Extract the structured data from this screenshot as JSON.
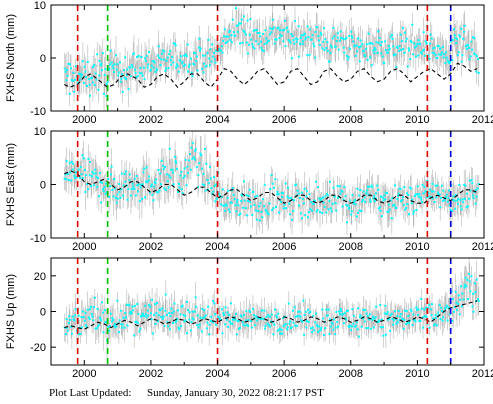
{
  "footer": {
    "label": "Plot Last Updated:",
    "timestamp": "Sunday, January 30, 2022 08:21:17 PST"
  },
  "colors": {
    "error_bars": "#b4b4b4",
    "observations": "#00ffff",
    "model": "#000000",
    "event_red": "#e00000",
    "event_green": "#00c000",
    "event_blue": "#0000e0"
  },
  "chart_data": [
    {
      "type": "scatter",
      "title": "",
      "ylabel": "FXHS North (mm)",
      "xlim": [
        1999.0,
        2012.0
      ],
      "ylim": [
        -10,
        10
      ],
      "xticks": [
        2000,
        2002,
        2004,
        2006,
        2008,
        2010,
        2012
      ],
      "yticks": [
        -10,
        0,
        10
      ],
      "grid": false,
      "event_lines": [
        {
          "x": 1999.8,
          "color": "red"
        },
        {
          "x": 2000.7,
          "color": "green"
        },
        {
          "x": 2004.0,
          "color": "red"
        },
        {
          "x": 2010.3,
          "color": "red"
        },
        {
          "x": 2011.0,
          "color": "blue"
        }
      ],
      "obs_envelope": {
        "x": [
          1999.4,
          1999.8,
          2000.2,
          2000.7,
          2001.0,
          2001.5,
          2002.0,
          2002.5,
          2003.0,
          2003.5,
          2004.0,
          2004.3,
          2004.6,
          2005.0,
          2005.3,
          2005.6,
          2006.0,
          2006.3,
          2006.6,
          2007.0,
          2007.3,
          2007.6,
          2008.0,
          2008.3,
          2008.6,
          2009.0,
          2009.3,
          2009.6,
          2010.0,
          2010.3,
          2010.6,
          2011.0,
          2011.3,
          2011.6,
          2011.85
        ],
        "center": [
          -3.5,
          -4.0,
          -3.0,
          -3.0,
          -2.5,
          -2.0,
          -1.0,
          -0.5,
          0.0,
          0.3,
          0.5,
          4.0,
          5.5,
          4.5,
          3.5,
          5.0,
          4.5,
          3.0,
          4.0,
          3.5,
          2.5,
          3.0,
          2.5,
          1.5,
          2.5,
          2.0,
          1.5,
          2.5,
          2.0,
          2.5,
          1.0,
          0.5,
          3.0,
          1.0,
          -1.0
        ],
        "error": [
          4.0,
          4.0,
          4.0,
          4.5,
          4.0,
          4.0,
          3.5,
          3.5,
          3.5,
          3.5,
          3.5,
          3.5,
          3.5,
          3.5,
          3.5,
          3.5,
          3.5,
          3.5,
          3.5,
          3.5,
          3.5,
          3.5,
          3.5,
          3.5,
          3.5,
          3.5,
          3.5,
          3.5,
          3.5,
          3.5,
          3.5,
          4.0,
          4.0,
          4.0,
          3.5
        ]
      },
      "model": {
        "x": [
          1999.4,
          1999.55,
          1999.8,
          2000.0,
          2000.2,
          2000.4,
          2000.7,
          2000.9,
          2001.1,
          2001.3,
          2001.6,
          2001.8,
          2002.0,
          2002.2,
          2002.4,
          2002.6,
          2002.8,
          2003.0,
          2003.2,
          2003.4,
          2003.6,
          2003.8,
          2004.0,
          2004.2,
          2004.4,
          2004.6,
          2004.8,
          2005.0,
          2005.2,
          2005.4,
          2005.6,
          2005.8,
          2006.0,
          2006.2,
          2006.4,
          2006.6,
          2006.8,
          2007.0,
          2007.2,
          2007.4,
          2007.6,
          2007.8,
          2008.0,
          2008.2,
          2008.4,
          2008.6,
          2008.8,
          2009.0,
          2009.2,
          2009.4,
          2009.6,
          2009.8,
          2010.0,
          2010.2,
          2010.4,
          2010.6,
          2010.8,
          2011.0,
          2011.2,
          2011.4,
          2011.6,
          2011.8
        ],
        "y": [
          -5.0,
          -5.5,
          -5.0,
          -3.5,
          -3.0,
          -4.0,
          -5.5,
          -5.0,
          -3.5,
          -3.0,
          -4.0,
          -5.5,
          -5.0,
          -3.5,
          -3.0,
          -4.0,
          -5.5,
          -4.5,
          -3.0,
          -3.0,
          -4.5,
          -5.5,
          -4.0,
          -2.0,
          -2.5,
          -4.0,
          -5.0,
          -4.0,
          -2.5,
          -2.0,
          -3.5,
          -5.0,
          -4.5,
          -2.5,
          -2.0,
          -3.5,
          -5.0,
          -4.5,
          -2.5,
          -2.0,
          -3.5,
          -4.5,
          -4.0,
          -2.5,
          -2.0,
          -3.5,
          -4.5,
          -4.0,
          -2.5,
          -2.0,
          -3.0,
          -4.5,
          -3.5,
          -2.5,
          -2.0,
          -3.0,
          -4.0,
          -3.0,
          -1.0,
          -1.5,
          -2.5,
          -2.0
        ]
      }
    },
    {
      "type": "scatter",
      "title": "",
      "ylabel": "FXHS East (mm)",
      "xlim": [
        1999.0,
        2012.0
      ],
      "ylim": [
        -10,
        10
      ],
      "xticks": [
        2000,
        2002,
        2004,
        2006,
        2008,
        2010,
        2012
      ],
      "yticks": [
        -10,
        0,
        10
      ],
      "grid": false,
      "event_lines": [
        {
          "x": 1999.8,
          "color": "red"
        },
        {
          "x": 2000.7,
          "color": "green"
        },
        {
          "x": 2004.0,
          "color": "red"
        },
        {
          "x": 2010.3,
          "color": "red"
        },
        {
          "x": 2011.0,
          "color": "blue"
        }
      ],
      "obs_envelope": {
        "x": [
          1999.4,
          1999.8,
          2000.2,
          2000.7,
          2001.0,
          2001.3,
          2001.6,
          2002.0,
          2002.3,
          2002.6,
          2002.9,
          2003.2,
          2003.5,
          2003.8,
          2004.0,
          2004.3,
          2004.6,
          2005.0,
          2005.3,
          2005.6,
          2006.0,
          2006.3,
          2006.6,
          2007.0,
          2007.3,
          2007.6,
          2008.0,
          2008.3,
          2008.6,
          2009.0,
          2009.3,
          2009.6,
          2010.0,
          2010.3,
          2010.6,
          2011.0,
          2011.3,
          2011.6,
          2011.85
        ],
        "center": [
          2.0,
          2.5,
          0.5,
          0.0,
          -1.0,
          0.0,
          1.0,
          -0.5,
          1.5,
          3.0,
          0.0,
          4.5,
          3.0,
          0.5,
          -1.5,
          -3.5,
          -3.0,
          -3.5,
          -4.0,
          -2.0,
          -3.5,
          -3.0,
          -2.5,
          -3.5,
          -3.0,
          -2.0,
          -3.5,
          -2.5,
          -2.0,
          -3.5,
          -3.0,
          -2.5,
          -2.5,
          -2.0,
          -1.0,
          -3.0,
          -2.5,
          -1.5,
          -1.0
        ],
        "error": [
          3.5,
          3.5,
          4.0,
          4.0,
          4.0,
          4.0,
          4.0,
          4.0,
          4.0,
          4.0,
          4.0,
          4.0,
          4.0,
          4.0,
          3.5,
          3.5,
          3.5,
          3.5,
          3.5,
          3.5,
          3.5,
          3.5,
          3.5,
          3.5,
          3.5,
          3.5,
          3.5,
          3.5,
          3.5,
          3.5,
          3.5,
          3.5,
          3.5,
          3.5,
          3.5,
          3.5,
          3.5,
          3.5,
          3.5
        ]
      },
      "model": {
        "x": [
          1999.4,
          1999.6,
          1999.8,
          2000.0,
          2000.2,
          2000.4,
          2000.6,
          2000.8,
          2001.0,
          2001.2,
          2001.4,
          2001.6,
          2001.8,
          2002.0,
          2002.2,
          2002.4,
          2002.6,
          2002.8,
          2003.0,
          2003.2,
          2003.4,
          2003.6,
          2003.8,
          2004.0,
          2004.2,
          2004.4,
          2004.6,
          2004.8,
          2005.0,
          2005.2,
          2005.4,
          2005.6,
          2005.8,
          2006.0,
          2006.2,
          2006.4,
          2006.6,
          2006.8,
          2007.0,
          2007.2,
          2007.4,
          2007.6,
          2007.8,
          2008.0,
          2008.2,
          2008.4,
          2008.6,
          2008.8,
          2009.0,
          2009.2,
          2009.4,
          2009.6,
          2009.8,
          2010.0,
          2010.2,
          2010.4,
          2010.6,
          2010.8,
          2011.0,
          2011.2,
          2011.4,
          2011.6,
          2011.8
        ],
        "y": [
          2.0,
          2.5,
          2.0,
          0.5,
          0.0,
          0.5,
          1.0,
          0.0,
          -1.0,
          -0.5,
          0.5,
          0.5,
          -0.5,
          -1.5,
          -1.0,
          0.0,
          0.0,
          -1.0,
          -2.0,
          -1.5,
          -0.5,
          -0.5,
          -1.5,
          -2.5,
          -2.0,
          -1.0,
          -1.0,
          -2.0,
          -3.0,
          -2.5,
          -1.5,
          -1.5,
          -2.5,
          -3.5,
          -3.0,
          -2.0,
          -2.0,
          -3.0,
          -3.5,
          -3.0,
          -2.0,
          -2.0,
          -3.0,
          -3.5,
          -3.0,
          -2.0,
          -2.0,
          -3.0,
          -3.5,
          -3.0,
          -2.0,
          -2.0,
          -3.0,
          -3.5,
          -3.5,
          -2.5,
          -2.0,
          -2.5,
          -3.0,
          -2.0,
          -1.0,
          -1.0,
          -1.5
        ]
      }
    },
    {
      "type": "scatter",
      "title": "",
      "ylabel": "FXHS Up (mm)",
      "xlim": [
        1999.0,
        2012.0
      ],
      "ylim": [
        -30,
        30
      ],
      "xticks": [
        2000,
        2002,
        2004,
        2006,
        2008,
        2010,
        2012
      ],
      "yticks": [
        -20,
        0,
        20
      ],
      "grid": false,
      "event_lines": [
        {
          "x": 1999.8,
          "color": "red"
        },
        {
          "x": 2000.7,
          "color": "green"
        },
        {
          "x": 2004.0,
          "color": "red"
        },
        {
          "x": 2010.3,
          "color": "red"
        },
        {
          "x": 2011.0,
          "color": "blue"
        }
      ],
      "obs_envelope": {
        "x": [
          1999.4,
          1999.8,
          2000.2,
          2000.7,
          2001.0,
          2001.5,
          2002.0,
          2002.5,
          2003.0,
          2003.5,
          2004.0,
          2004.5,
          2005.0,
          2005.5,
          2006.0,
          2006.5,
          2007.0,
          2007.5,
          2008.0,
          2008.5,
          2009.0,
          2009.5,
          2010.0,
          2010.3,
          2010.6,
          2011.0,
          2011.3,
          2011.6,
          2011.85
        ],
        "center": [
          -8.0,
          -6.0,
          -4.0,
          -5.0,
          -3.0,
          -4.0,
          -2.0,
          -3.0,
          -2.0,
          -3.0,
          -5.0,
          -4.0,
          -5.0,
          -4.0,
          -5.0,
          -4.0,
          -5.0,
          -4.0,
          -5.0,
          -4.0,
          -5.0,
          -4.0,
          -4.0,
          -5.0,
          -3.0,
          0.0,
          8.0,
          12.0,
          10.0
        ],
        "error": [
          10.0,
          10.0,
          12.0,
          12.0,
          10.0,
          10.0,
          10.0,
          10.0,
          10.0,
          10.0,
          9.0,
          9.0,
          9.0,
          9.0,
          9.0,
          9.0,
          9.0,
          9.0,
          9.0,
          9.0,
          9.0,
          9.0,
          9.0,
          9.0,
          10.0,
          12.0,
          12.0,
          12.0,
          12.0
        ]
      },
      "model": {
        "x": [
          1999.4,
          1999.6,
          1999.8,
          2000.0,
          2000.2,
          2000.4,
          2000.6,
          2000.8,
          2001.0,
          2001.2,
          2001.4,
          2001.6,
          2001.8,
          2002.0,
          2002.2,
          2002.4,
          2002.6,
          2002.8,
          2003.0,
          2003.2,
          2003.4,
          2003.6,
          2003.8,
          2004.0,
          2004.2,
          2004.4,
          2004.6,
          2004.8,
          2005.0,
          2005.2,
          2005.4,
          2005.6,
          2005.8,
          2006.0,
          2006.2,
          2006.4,
          2006.6,
          2006.8,
          2007.0,
          2007.2,
          2007.4,
          2007.6,
          2007.8,
          2008.0,
          2008.2,
          2008.4,
          2008.6,
          2008.8,
          2009.0,
          2009.2,
          2009.4,
          2009.6,
          2009.8,
          2010.0,
          2010.2,
          2010.4,
          2010.6,
          2010.8,
          2011.0,
          2011.2,
          2011.4,
          2011.6,
          2011.8
        ],
        "y": [
          -9.0,
          -8.0,
          -9.0,
          -10.0,
          -8.0,
          -6.0,
          -7.0,
          -9.0,
          -7.0,
          -5.0,
          -6.0,
          -8.0,
          -6.0,
          -4.0,
          -5.0,
          -7.0,
          -6.0,
          -4.0,
          -5.0,
          -7.0,
          -6.0,
          -4.0,
          -5.0,
          -6.0,
          -4.0,
          -3.0,
          -4.0,
          -6.0,
          -5.0,
          -3.0,
          -4.0,
          -6.0,
          -5.0,
          -3.0,
          -4.0,
          -6.0,
          -5.0,
          -3.0,
          -4.0,
          -6.0,
          -5.0,
          -3.0,
          -4.0,
          -6.0,
          -5.0,
          -3.0,
          -4.0,
          -6.0,
          -5.0,
          -3.0,
          -4.0,
          -6.0,
          -5.0,
          -3.0,
          -4.0,
          -6.0,
          -3.0,
          0.0,
          2.0,
          3.0,
          4.0,
          5.0,
          6.0
        ]
      }
    }
  ]
}
